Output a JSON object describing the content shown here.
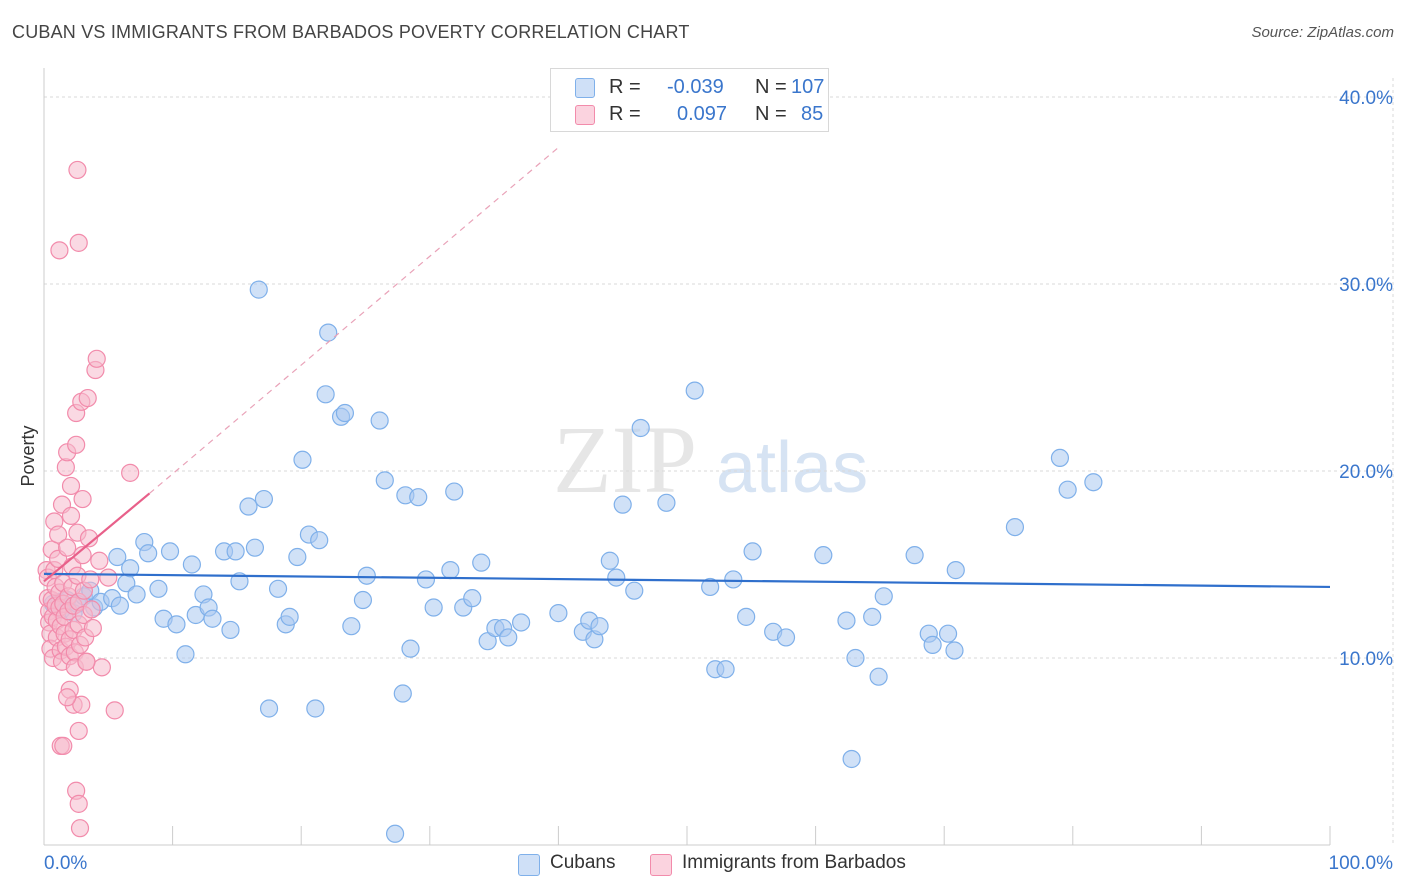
{
  "title": "CUBAN VS IMMIGRANTS FROM BARBADOS POVERTY CORRELATION CHART",
  "source": "Source: ZipAtlas.com",
  "watermark": {
    "zip": "ZIP",
    "atlas": "atlas"
  },
  "legend_top": [
    {
      "r_label": "R =",
      "r_value": "-0.039",
      "n_label": "N =",
      "n_value": "107",
      "color": "#a9c8f0"
    },
    {
      "r_label": "R =",
      "r_value": "0.097",
      "n_label": "N =",
      "n_value": "85",
      "color": "#f6b9cc"
    }
  ],
  "legend_bottom": [
    {
      "label": "Cubans",
      "color": "#a9c8f0"
    },
    {
      "label": "Immigrants from Barbados",
      "color": "#f6b9cc"
    }
  ],
  "chart_data": {
    "type": "scatter",
    "title": "CUBAN VS IMMIGRANTS FROM BARBADOS POVERTY CORRELATION CHART",
    "xlabel": "",
    "ylabel": "Poverty",
    "xlim": [
      0,
      100
    ],
    "ylim": [
      0,
      40
    ],
    "x_tick_labels": [
      "0.0%",
      "100.0%"
    ],
    "y_ticks": [
      10,
      20,
      30,
      40
    ],
    "y_tick_labels": [
      "10.0%",
      "20.0%",
      "30.0%",
      "40.0%"
    ],
    "grid": true,
    "legend_position": "top-center",
    "series": [
      {
        "name": "Cubans",
        "color": "#7fb0ea",
        "fill": "#a9c8f0",
        "trend": {
          "x": [
            0,
            100
          ],
          "y": [
            14.5,
            13.8
          ],
          "style": "solid",
          "color": "#2f6fcc"
        },
        "points": [
          [
            0.7,
            12.9
          ],
          [
            1.2,
            13.0
          ],
          [
            1.4,
            12.6
          ],
          [
            1.8,
            13.1
          ],
          [
            2.3,
            12.4
          ],
          [
            2.6,
            12.9
          ],
          [
            3.1,
            13.3
          ],
          [
            3.6,
            13.6
          ],
          [
            3.9,
            12.7
          ],
          [
            4.4,
            13.0
          ],
          [
            5.3,
            13.2
          ],
          [
            5.7,
            15.4
          ],
          [
            5.9,
            12.8
          ],
          [
            6.4,
            14.0
          ],
          [
            6.7,
            14.8
          ],
          [
            7.2,
            13.4
          ],
          [
            7.8,
            16.2
          ],
          [
            8.1,
            15.6
          ],
          [
            8.9,
            13.7
          ],
          [
            9.3,
            12.1
          ],
          [
            9.8,
            15.7
          ],
          [
            10.3,
            11.8
          ],
          [
            11.0,
            10.2
          ],
          [
            11.5,
            15.0
          ],
          [
            11.8,
            12.3
          ],
          [
            12.4,
            13.4
          ],
          [
            12.8,
            12.7
          ],
          [
            13.1,
            12.1
          ],
          [
            14.0,
            15.7
          ],
          [
            14.5,
            11.5
          ],
          [
            14.9,
            15.7
          ],
          [
            15.2,
            14.1
          ],
          [
            15.9,
            18.1
          ],
          [
            16.4,
            15.9
          ],
          [
            16.7,
            29.7
          ],
          [
            17.1,
            18.5
          ],
          [
            17.5,
            7.3
          ],
          [
            18.2,
            13.7
          ],
          [
            18.8,
            11.8
          ],
          [
            19.1,
            12.2
          ],
          [
            19.7,
            15.4
          ],
          [
            20.1,
            20.6
          ],
          [
            20.6,
            16.6
          ],
          [
            21.1,
            7.3
          ],
          [
            21.4,
            16.3
          ],
          [
            21.9,
            24.1
          ],
          [
            22.1,
            27.4
          ],
          [
            23.1,
            22.9
          ],
          [
            23.4,
            23.1
          ],
          [
            23.9,
            11.7
          ],
          [
            24.8,
            13.1
          ],
          [
            25.1,
            14.4
          ],
          [
            26.1,
            22.7
          ],
          [
            26.5,
            19.5
          ],
          [
            27.3,
            0.6
          ],
          [
            27.9,
            8.1
          ],
          [
            28.1,
            18.7
          ],
          [
            28.5,
            10.5
          ],
          [
            29.1,
            18.6
          ],
          [
            29.7,
            14.2
          ],
          [
            30.3,
            12.7
          ],
          [
            31.6,
            14.7
          ],
          [
            31.9,
            18.9
          ],
          [
            32.6,
            12.7
          ],
          [
            33.3,
            13.2
          ],
          [
            34.0,
            15.1
          ],
          [
            34.5,
            10.9
          ],
          [
            35.1,
            11.6
          ],
          [
            35.7,
            11.6
          ],
          [
            36.1,
            11.1
          ],
          [
            37.1,
            11.9
          ],
          [
            40.0,
            12.4
          ],
          [
            41.9,
            11.4
          ],
          [
            42.4,
            12.0
          ],
          [
            42.8,
            11.0
          ],
          [
            43.2,
            11.7
          ],
          [
            44.0,
            15.2
          ],
          [
            44.5,
            14.3
          ],
          [
            45.0,
            18.2
          ],
          [
            45.9,
            13.6
          ],
          [
            46.4,
            22.3
          ],
          [
            48.4,
            18.3
          ],
          [
            50.6,
            24.3
          ],
          [
            51.8,
            13.8
          ],
          [
            52.2,
            9.4
          ],
          [
            53.0,
            9.4
          ],
          [
            53.6,
            14.2
          ],
          [
            54.6,
            12.2
          ],
          [
            55.1,
            15.7
          ],
          [
            56.7,
            11.4
          ],
          [
            57.7,
            11.1
          ],
          [
            60.6,
            15.5
          ],
          [
            62.4,
            12.0
          ],
          [
            62.8,
            4.6
          ],
          [
            63.1,
            10.0
          ],
          [
            64.4,
            12.2
          ],
          [
            64.9,
            9.0
          ],
          [
            65.3,
            13.3
          ],
          [
            67.7,
            15.5
          ],
          [
            68.8,
            11.3
          ],
          [
            69.1,
            10.7
          ],
          [
            70.3,
            11.3
          ],
          [
            70.8,
            10.4
          ],
          [
            70.9,
            14.7
          ],
          [
            75.5,
            17.0
          ],
          [
            79.0,
            20.7
          ],
          [
            79.6,
            19.0
          ],
          [
            81.6,
            19.4
          ]
        ]
      },
      {
        "name": "Immigrants from Barbados",
        "color": "#f28bab",
        "fill": "#f6b9cc",
        "trend": {
          "x": [
            0,
            8.2
          ],
          "y": [
            14.1,
            18.8
          ],
          "style": "solid",
          "color": "#e8608a",
          "extended": {
            "x": [
              8.2,
              40
            ],
            "y": [
              18.8,
              37.3
            ],
            "style": "dashed"
          }
        },
        "points": [
          [
            0.2,
            14.7
          ],
          [
            0.3,
            14.3
          ],
          [
            0.3,
            13.2
          ],
          [
            0.4,
            12.5
          ],
          [
            0.4,
            11.9
          ],
          [
            0.5,
            11.3
          ],
          [
            0.5,
            10.5
          ],
          [
            0.6,
            15.8
          ],
          [
            0.6,
            13.1
          ],
          [
            0.7,
            12.2
          ],
          [
            0.7,
            10.0
          ],
          [
            0.8,
            17.3
          ],
          [
            0.8,
            14.7
          ],
          [
            0.9,
            13.8
          ],
          [
            0.9,
            12.8
          ],
          [
            1.0,
            12.0
          ],
          [
            1.0,
            11.1
          ],
          [
            1.1,
            16.6
          ],
          [
            1.1,
            15.3
          ],
          [
            1.2,
            13.5
          ],
          [
            1.2,
            12.7
          ],
          [
            1.3,
            11.7
          ],
          [
            1.3,
            10.4
          ],
          [
            1.4,
            9.8
          ],
          [
            1.4,
            18.2
          ],
          [
            1.5,
            14.0
          ],
          [
            1.5,
            12.9
          ],
          [
            1.6,
            12.2
          ],
          [
            1.6,
            11.3
          ],
          [
            1.7,
            10.6
          ],
          [
            1.7,
            20.2
          ],
          [
            1.8,
            21.0
          ],
          [
            1.8,
            15.9
          ],
          [
            1.9,
            13.3
          ],
          [
            1.9,
            12.5
          ],
          [
            2.0,
            11.0
          ],
          [
            2.0,
            10.1
          ],
          [
            2.1,
            19.2
          ],
          [
            2.1,
            17.6
          ],
          [
            2.2,
            14.9
          ],
          [
            2.2,
            13.8
          ],
          [
            2.3,
            12.8
          ],
          [
            2.3,
            11.5
          ],
          [
            2.4,
            10.3
          ],
          [
            2.4,
            9.5
          ],
          [
            2.5,
            23.1
          ],
          [
            2.5,
            21.4
          ],
          [
            2.6,
            16.7
          ],
          [
            2.6,
            14.4
          ],
          [
            2.7,
            13.0
          ],
          [
            2.7,
            11.8
          ],
          [
            2.8,
            10.7
          ],
          [
            2.9,
            23.7
          ],
          [
            3.0,
            18.5
          ],
          [
            3.0,
            15.5
          ],
          [
            3.1,
            13.6
          ],
          [
            3.1,
            12.3
          ],
          [
            3.2,
            11.1
          ],
          [
            3.3,
            9.8
          ],
          [
            3.4,
            23.9
          ],
          [
            3.5,
            16.4
          ],
          [
            3.6,
            14.2
          ],
          [
            3.7,
            12.6
          ],
          [
            3.8,
            11.6
          ],
          [
            4.0,
            25.4
          ],
          [
            4.1,
            26.0
          ],
          [
            4.3,
            15.2
          ],
          [
            4.5,
            9.5
          ],
          [
            5.0,
            14.3
          ],
          [
            5.5,
            7.2
          ],
          [
            1.3,
            5.3
          ],
          [
            1.5,
            5.3
          ],
          [
            2.0,
            8.3
          ],
          [
            2.3,
            7.5
          ],
          [
            2.7,
            6.1
          ],
          [
            2.9,
            7.5
          ],
          [
            2.5,
            2.9
          ],
          [
            2.7,
            2.2
          ],
          [
            2.8,
            0.9
          ],
          [
            1.2,
            31.8
          ],
          [
            2.7,
            32.2
          ],
          [
            2.6,
            36.1
          ],
          [
            3.3,
            9.8
          ],
          [
            6.7,
            19.9
          ],
          [
            1.8,
            7.9
          ]
        ]
      }
    ]
  }
}
